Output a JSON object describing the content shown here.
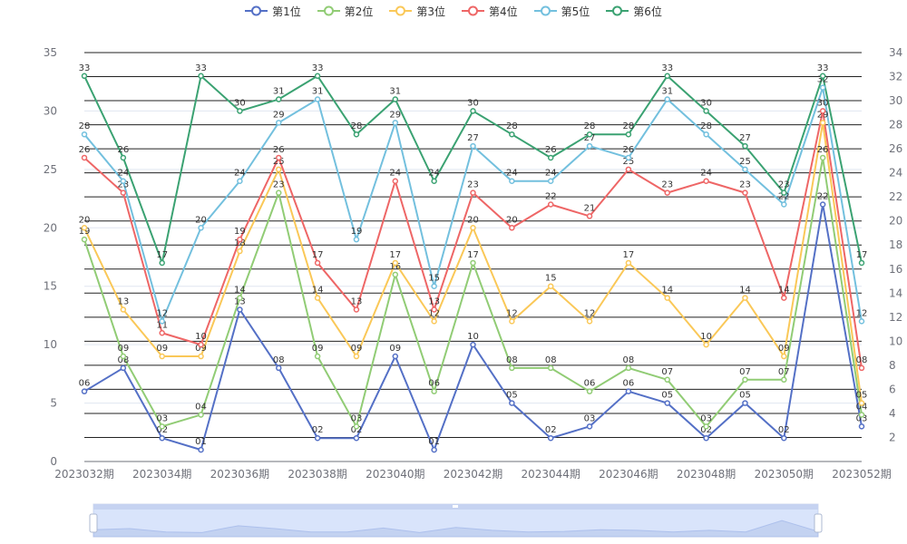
{
  "chart_data": {
    "type": "line",
    "title": "",
    "xlabel": "",
    "ylabel": "",
    "ylim": [
      0,
      35
    ],
    "ylim_right": [
      0,
      34
    ],
    "y_ticks_left": [
      "0",
      "5",
      "10",
      "15",
      "20",
      "25",
      "30",
      "35"
    ],
    "y_ticks_right": [
      "2",
      "4",
      "6",
      "8",
      "10",
      "12",
      "14",
      "16",
      "18",
      "20",
      "22",
      "24",
      "26",
      "28",
      "30",
      "32",
      "34"
    ],
    "x": [
      "2023032期",
      "2023033期",
      "2023034期",
      "2023035期",
      "2023036期",
      "2023037期",
      "2023038期",
      "2023039期",
      "2023040期",
      "2023041期",
      "2023042期",
      "2023043期",
      "2023044期",
      "2023045期",
      "2023046期",
      "2023047期",
      "2023048期",
      "2023049期",
      "2023050期",
      "2023051期",
      "2023052期"
    ],
    "x_tick_labels": [
      "2023032期",
      "2023034期",
      "2023036期",
      "2023038期",
      "2023040期",
      "2023042期",
      "2023044期",
      "2023046期",
      "2023048期",
      "2023050期",
      "2023052期"
    ],
    "series": [
      {
        "name": "第1位",
        "color": "#5470c6",
        "values": [
          6,
          8,
          2,
          1,
          13,
          8,
          2,
          2,
          9,
          1,
          10,
          5,
          2,
          3,
          6,
          5,
          2,
          5,
          2,
          22,
          3
        ],
        "labels": [
          "06",
          "08",
          "02",
          "01",
          "13",
          "08",
          "02",
          "02",
          "09",
          "01",
          "10",
          "05",
          "02",
          "03",
          "06",
          "05",
          "02",
          "05",
          "02",
          "22",
          "03"
        ]
      },
      {
        "name": "第2位",
        "color": "#91cc75",
        "values": [
          19,
          9,
          3,
          4,
          14,
          23,
          9,
          3,
          16,
          6,
          17,
          8,
          8,
          6,
          8,
          7,
          3,
          7,
          7,
          26,
          4
        ],
        "labels": [
          "19",
          "09",
          "03",
          "04",
          "14",
          "23",
          "09",
          "03",
          "16",
          "06",
          "17",
          "08",
          "08",
          "06",
          "08",
          "07",
          "03",
          "07",
          "07",
          "26",
          "04"
        ]
      },
      {
        "name": "第3位",
        "color": "#fac858",
        "values": [
          20,
          13,
          9,
          9,
          18,
          25,
          14,
          9,
          17,
          12,
          20,
          12,
          15,
          12,
          17,
          14,
          10,
          14,
          9,
          29,
          5
        ],
        "labels": [
          "20",
          "13",
          "09",
          "09",
          "18",
          "25",
          "14",
          "09",
          "17",
          "12",
          "20",
          "12",
          "15",
          "12",
          "17",
          "14",
          "10",
          "14",
          "09",
          "29",
          "05"
        ]
      },
      {
        "name": "第4位",
        "color": "#ee6666",
        "values": [
          26,
          23,
          11,
          10,
          19,
          26,
          17,
          13,
          24,
          13,
          23,
          20,
          22,
          21,
          25,
          23,
          24,
          23,
          14,
          30,
          8
        ],
        "labels": [
          "26",
          "23",
          "11",
          "10",
          "19",
          "26",
          "17",
          "13",
          "24",
          "13",
          "23",
          "20",
          "22",
          "21",
          "25",
          "23",
          "24",
          "23",
          "14",
          "30",
          "08"
        ]
      },
      {
        "name": "第5位",
        "color": "#73c0de",
        "values": [
          28,
          24,
          12,
          20,
          24,
          29,
          31,
          19,
          29,
          15,
          27,
          24,
          24,
          27,
          26,
          31,
          28,
          25,
          22,
          32,
          12
        ],
        "labels": [
          "28",
          "24",
          "12",
          "20",
          "24",
          "29",
          "31",
          "19",
          "29",
          "15",
          "27",
          "24",
          "24",
          "27",
          "26",
          "31",
          "28",
          "25",
          "22",
          "32",
          "12"
        ]
      },
      {
        "name": "第6位",
        "color": "#3ba272",
        "values": [
          33,
          26,
          17,
          33,
          30,
          31,
          33,
          28,
          31,
          24,
          30,
          28,
          26,
          28,
          28,
          33,
          30,
          27,
          23,
          33,
          17
        ],
        "labels": [
          "33",
          "26",
          "17",
          "33",
          "30",
          "31",
          "33",
          "28",
          "31",
          "24",
          "30",
          "28",
          "26",
          "28",
          "28",
          "33",
          "30",
          "27",
          "23",
          "33",
          "17"
        ]
      }
    ],
    "grid": true,
    "legend_position": "top-center",
    "data_zoom": {
      "start_percent": 0,
      "end_percent": 100
    }
  }
}
